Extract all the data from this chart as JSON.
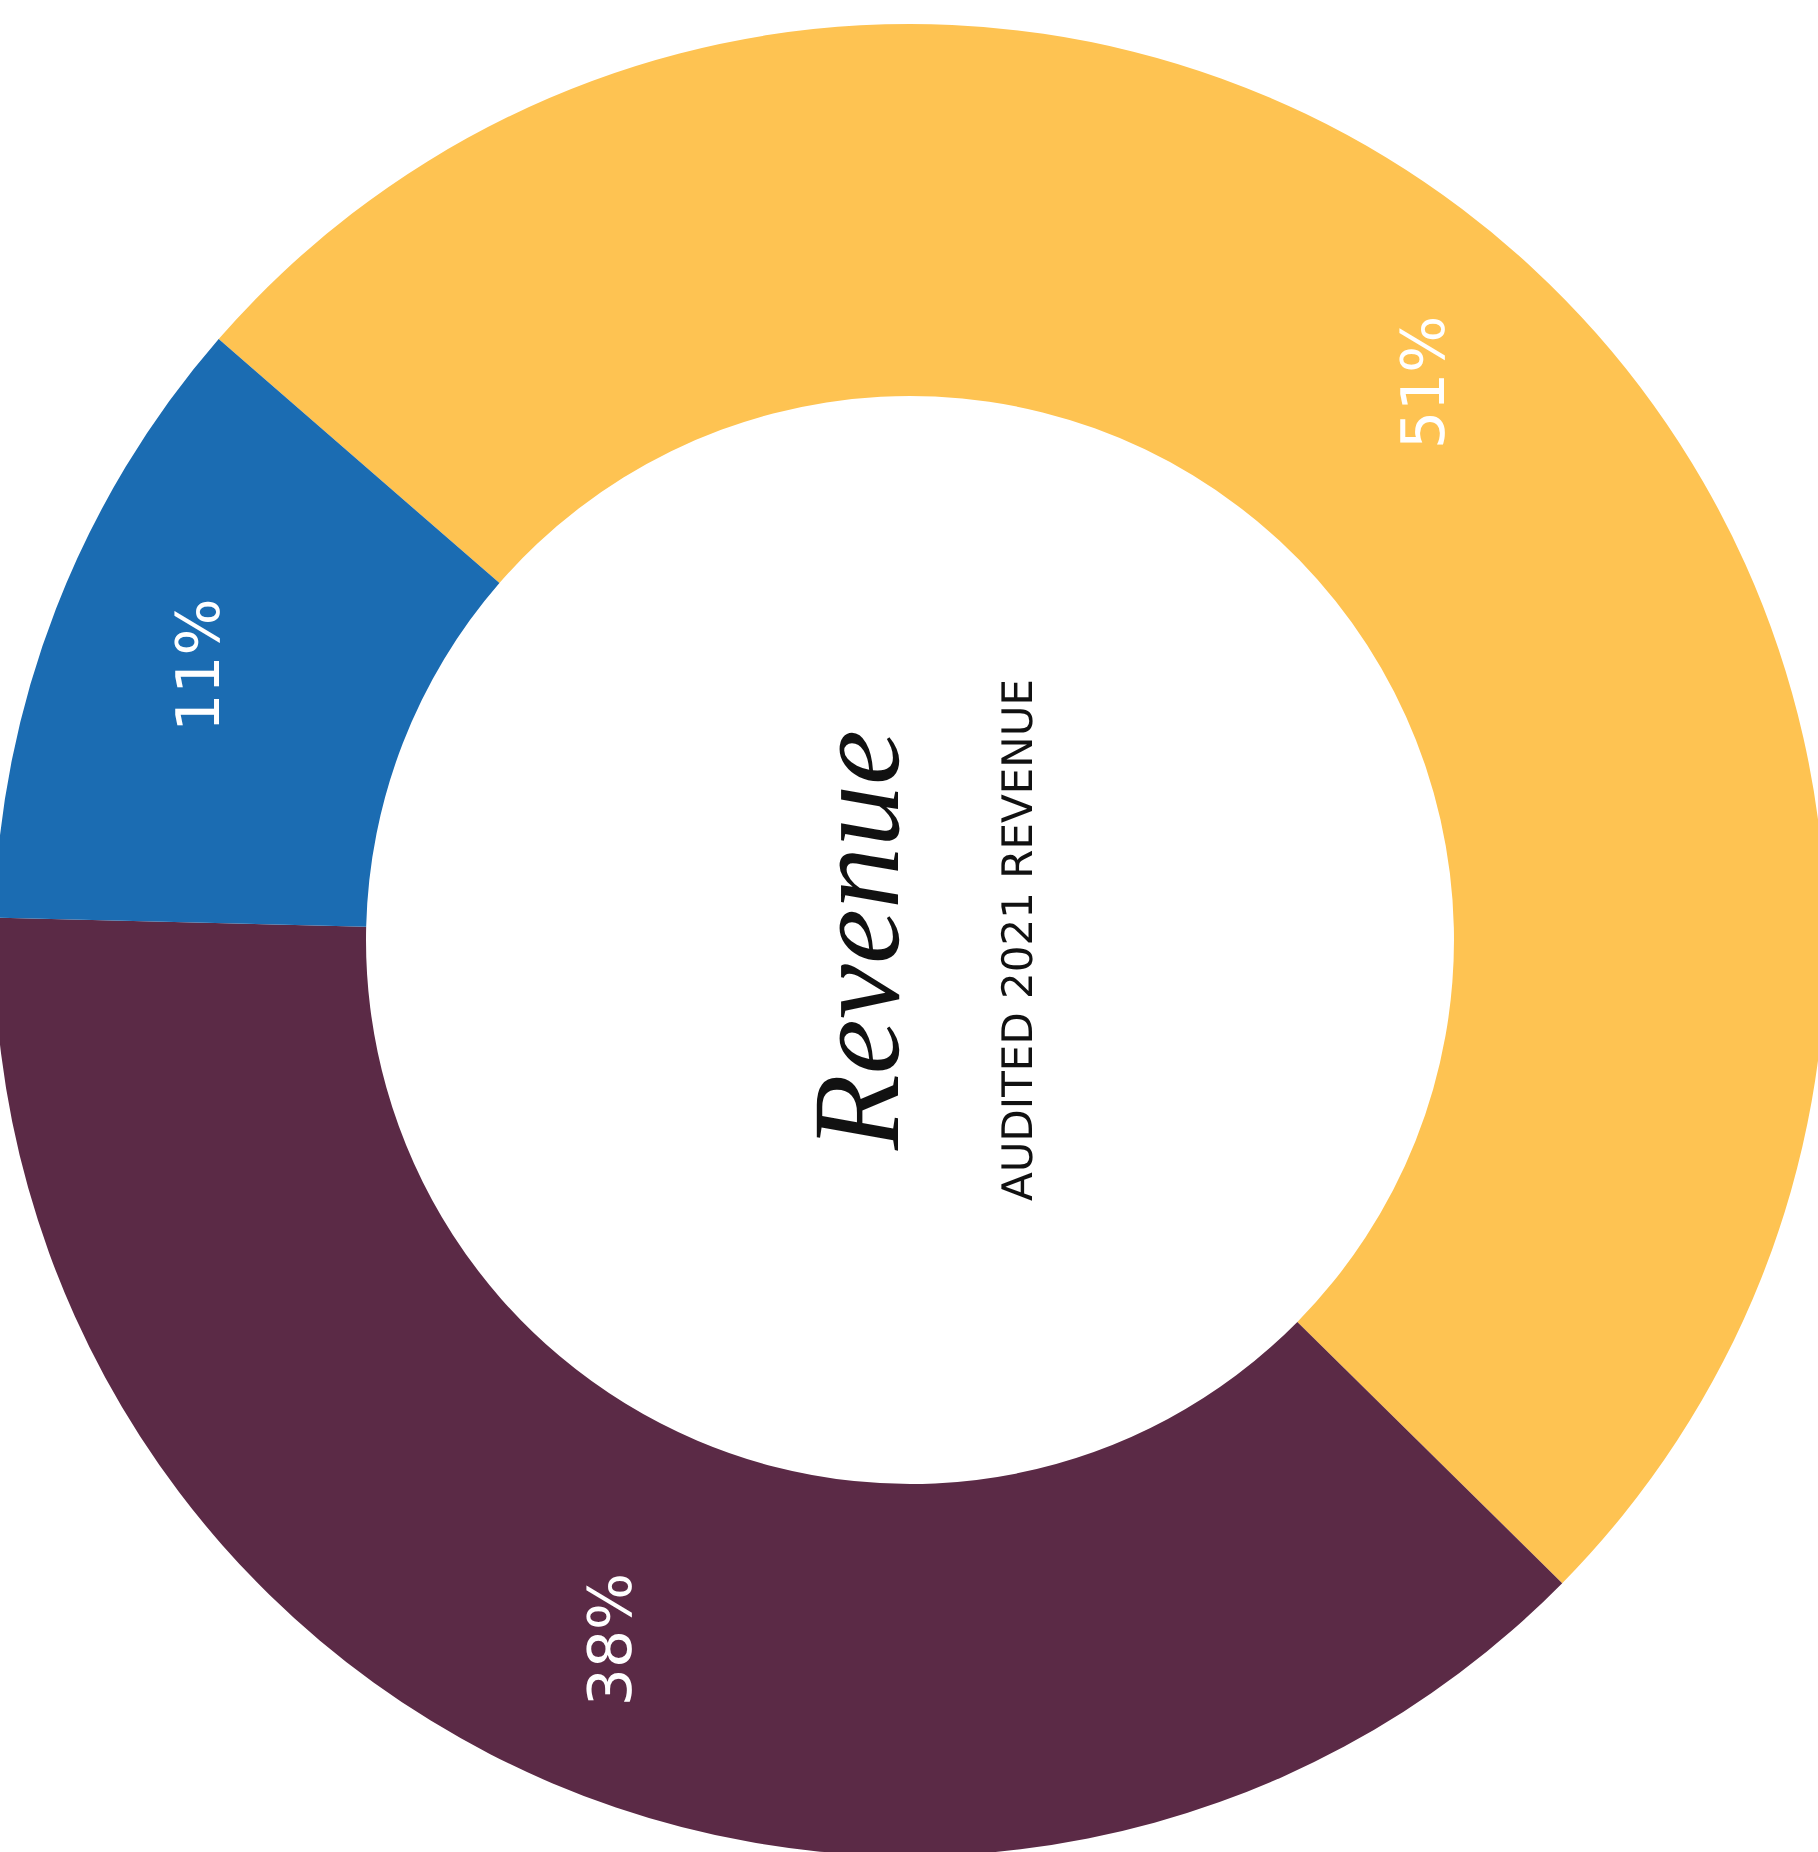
{
  "chart_data": {
    "type": "donut",
    "title": "Revenue",
    "subtitle": "AUDITED 2021 REVENUE",
    "categories": [
      null,
      null,
      null
    ],
    "values": [
      51,
      38,
      11
    ],
    "value_labels": [
      "51%",
      "38%",
      "11%"
    ],
    "colors": [
      "#fec352",
      "#5b2a46",
      "#1b6cb2"
    ]
  }
}
